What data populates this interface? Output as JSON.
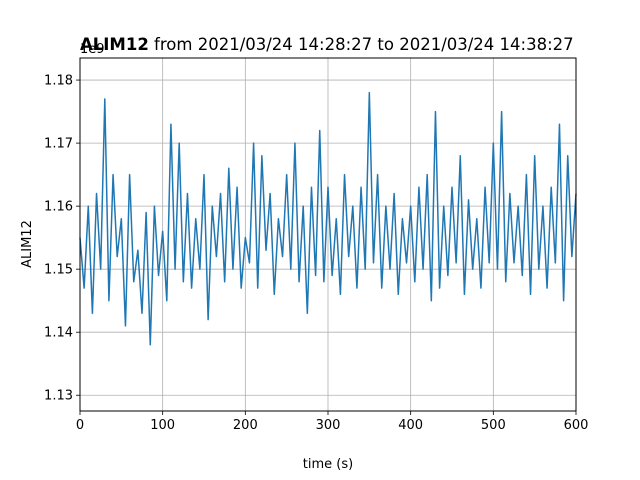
{
  "chart_data": {
    "type": "line",
    "title_bold": "ALIM12",
    "title_rest": " from 2021/03/24 14:28:27 to 2021/03/24 14:38:27",
    "xlabel": "time (s)",
    "ylabel": "ALIM12",
    "offset_label": "1e9",
    "xlim": [
      0,
      600
    ],
    "ylim": [
      1.1275,
      1.1835
    ],
    "xticks": [
      0,
      100,
      200,
      300,
      400,
      500,
      600
    ],
    "xtick_labels": [
      "0",
      "100",
      "200",
      "300",
      "400",
      "500",
      "600"
    ],
    "yticks": [
      1.13,
      1.14,
      1.15,
      1.16,
      1.17,
      1.18
    ],
    "ytick_labels": [
      "1.13",
      "1.14",
      "1.15",
      "1.16",
      "1.17",
      "1.18"
    ],
    "grid": true,
    "line_color": "#1f77b4",
    "series": [
      {
        "name": "",
        "x": [
          0,
          5,
          10,
          15,
          20,
          25,
          30,
          35,
          40,
          45,
          50,
          55,
          60,
          65,
          70,
          75,
          80,
          85,
          90,
          95,
          100,
          105,
          110,
          115,
          120,
          125,
          130,
          135,
          140,
          145,
          150,
          155,
          160,
          165,
          170,
          175,
          180,
          185,
          190,
          195,
          200,
          205,
          210,
          215,
          220,
          225,
          230,
          235,
          240,
          245,
          250,
          255,
          260,
          265,
          270,
          275,
          280,
          285,
          290,
          295,
          300,
          305,
          310,
          315,
          320,
          325,
          330,
          335,
          340,
          345,
          350,
          355,
          360,
          365,
          370,
          375,
          380,
          385,
          390,
          395,
          400,
          405,
          410,
          415,
          420,
          425,
          430,
          435,
          440,
          445,
          450,
          455,
          460,
          465,
          470,
          475,
          480,
          485,
          490,
          495,
          500,
          505,
          510,
          515,
          520,
          525,
          530,
          535,
          540,
          545,
          550,
          555,
          560,
          565,
          570,
          575,
          580,
          585,
          590,
          595,
          600
        ],
        "y": [
          1.155,
          1.147,
          1.16,
          1.143,
          1.162,
          1.15,
          1.177,
          1.145,
          1.165,
          1.152,
          1.158,
          1.141,
          1.165,
          1.148,
          1.153,
          1.143,
          1.159,
          1.138,
          1.16,
          1.149,
          1.156,
          1.145,
          1.173,
          1.15,
          1.17,
          1.148,
          1.162,
          1.147,
          1.158,
          1.15,
          1.165,
          1.142,
          1.16,
          1.152,
          1.162,
          1.148,
          1.166,
          1.15,
          1.163,
          1.147,
          1.155,
          1.151,
          1.17,
          1.147,
          1.168,
          1.153,
          1.162,
          1.146,
          1.158,
          1.152,
          1.165,
          1.15,
          1.17,
          1.148,
          1.16,
          1.143,
          1.163,
          1.149,
          1.172,
          1.148,
          1.163,
          1.149,
          1.158,
          1.146,
          1.165,
          1.152,
          1.16,
          1.147,
          1.163,
          1.15,
          1.178,
          1.151,
          1.165,
          1.147,
          1.16,
          1.15,
          1.162,
          1.146,
          1.158,
          1.151,
          1.16,
          1.148,
          1.163,
          1.15,
          1.165,
          1.145,
          1.175,
          1.147,
          1.16,
          1.149,
          1.163,
          1.151,
          1.168,
          1.146,
          1.161,
          1.15,
          1.158,
          1.147,
          1.163,
          1.151,
          1.17,
          1.15,
          1.175,
          1.148,
          1.162,
          1.151,
          1.16,
          1.149,
          1.165,
          1.146,
          1.168,
          1.15,
          1.16,
          1.147,
          1.163,
          1.151,
          1.173,
          1.145,
          1.168,
          1.152,
          1.162
        ]
      }
    ]
  }
}
